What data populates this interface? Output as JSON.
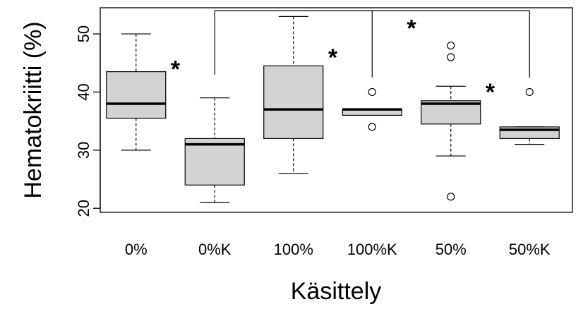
{
  "chart_data": {
    "type": "boxplot",
    "xlabel": "Käsittely",
    "ylabel": "Hematokriitti (%)",
    "ylim": [
      19.3,
      54.5
    ],
    "yticks": [
      20,
      30,
      40,
      50
    ],
    "box_fill": "#d3d3d3",
    "categories": [
      "0%",
      "0%K",
      "100%",
      "100%K",
      "50%",
      "50%K"
    ],
    "boxes": [
      {
        "label": "0%",
        "whisker_low": 30,
        "q1": 35.5,
        "median": 38,
        "q3": 43.5,
        "whisker_high": 50,
        "outliers": []
      },
      {
        "label": "0%K",
        "whisker_low": 21,
        "q1": 24,
        "median": 31,
        "q3": 32,
        "whisker_high": 39,
        "outliers": []
      },
      {
        "label": "100%",
        "whisker_low": 26,
        "q1": 32,
        "median": 37,
        "q3": 44.5,
        "whisker_high": 53,
        "outliers": []
      },
      {
        "label": "100%K",
        "whisker_low": 36,
        "q1": 36,
        "median": 37,
        "q3": 37,
        "whisker_high": 37,
        "outliers": [
          40,
          34
        ]
      },
      {
        "label": "50%",
        "whisker_low": 29,
        "q1": 34.5,
        "median": 38,
        "q3": 38.5,
        "whisker_high": 41,
        "outliers": [
          48,
          46,
          22
        ]
      },
      {
        "label": "50%K",
        "whisker_low": 31,
        "q1": 32,
        "median": 33.5,
        "q3": 34,
        "whisker_high": 34,
        "outliers": [
          40
        ]
      }
    ],
    "significance": {
      "stars": [
        {
          "after_category": 0,
          "y": 45,
          "text": "*"
        },
        {
          "after_category": 2,
          "y": 47,
          "text": "*"
        },
        {
          "after_category": 4,
          "y": 41,
          "text": "*"
        },
        {
          "after_category": 3,
          "y": 52,
          "text": "*"
        }
      ],
      "bracket": {
        "y": 54,
        "categories": [
          1,
          3,
          5
        ],
        "drop_to": [
          43,
          42.5,
          42.5
        ]
      }
    }
  }
}
